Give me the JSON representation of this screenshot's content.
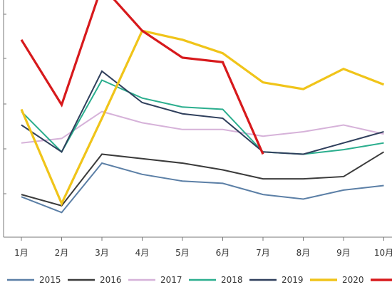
{
  "chart_data": {
    "type": "line",
    "categories": [
      "1月",
      "2月",
      "3月",
      "4月",
      "5月",
      "6月",
      "7月",
      "8月",
      "9月",
      "10月"
    ],
    "ylim": [
      0,
      100
    ],
    "grid": false,
    "legend_position": "bottom",
    "series": [
      {
        "name": "2015",
        "color": "#5B7FA6",
        "values": [
          18,
          11,
          33,
          28,
          25,
          24,
          19,
          17,
          21,
          23
        ]
      },
      {
        "name": "2016",
        "color": "#3b3b3b",
        "values": [
          19,
          14,
          37,
          35,
          33,
          30,
          26,
          26,
          27,
          38
        ]
      },
      {
        "name": "2017",
        "color": "#D6B2D9",
        "values": [
          42,
          44,
          56,
          51,
          48,
          48,
          45,
          47,
          50,
          46
        ]
      },
      {
        "name": "2018",
        "color": "#2BAE8E",
        "values": [
          56,
          38,
          70,
          62,
          58,
          57,
          38,
          37,
          39,
          42
        ]
      },
      {
        "name": "2019",
        "color": "#2f3f5c",
        "values": [
          50,
          38,
          74,
          60,
          55,
          53,
          38,
          37,
          42,
          47
        ]
      },
      {
        "name": "2020",
        "color": "#F0C419",
        "values": [
          57,
          15,
          53,
          92,
          88,
          82,
          69,
          66,
          75,
          68
        ]
      },
      {
        "name": "",
        "color": "#D7191C",
        "values": [
          88,
          59,
          112,
          92,
          80,
          78,
          37,
          null,
          null,
          null
        ]
      }
    ]
  }
}
